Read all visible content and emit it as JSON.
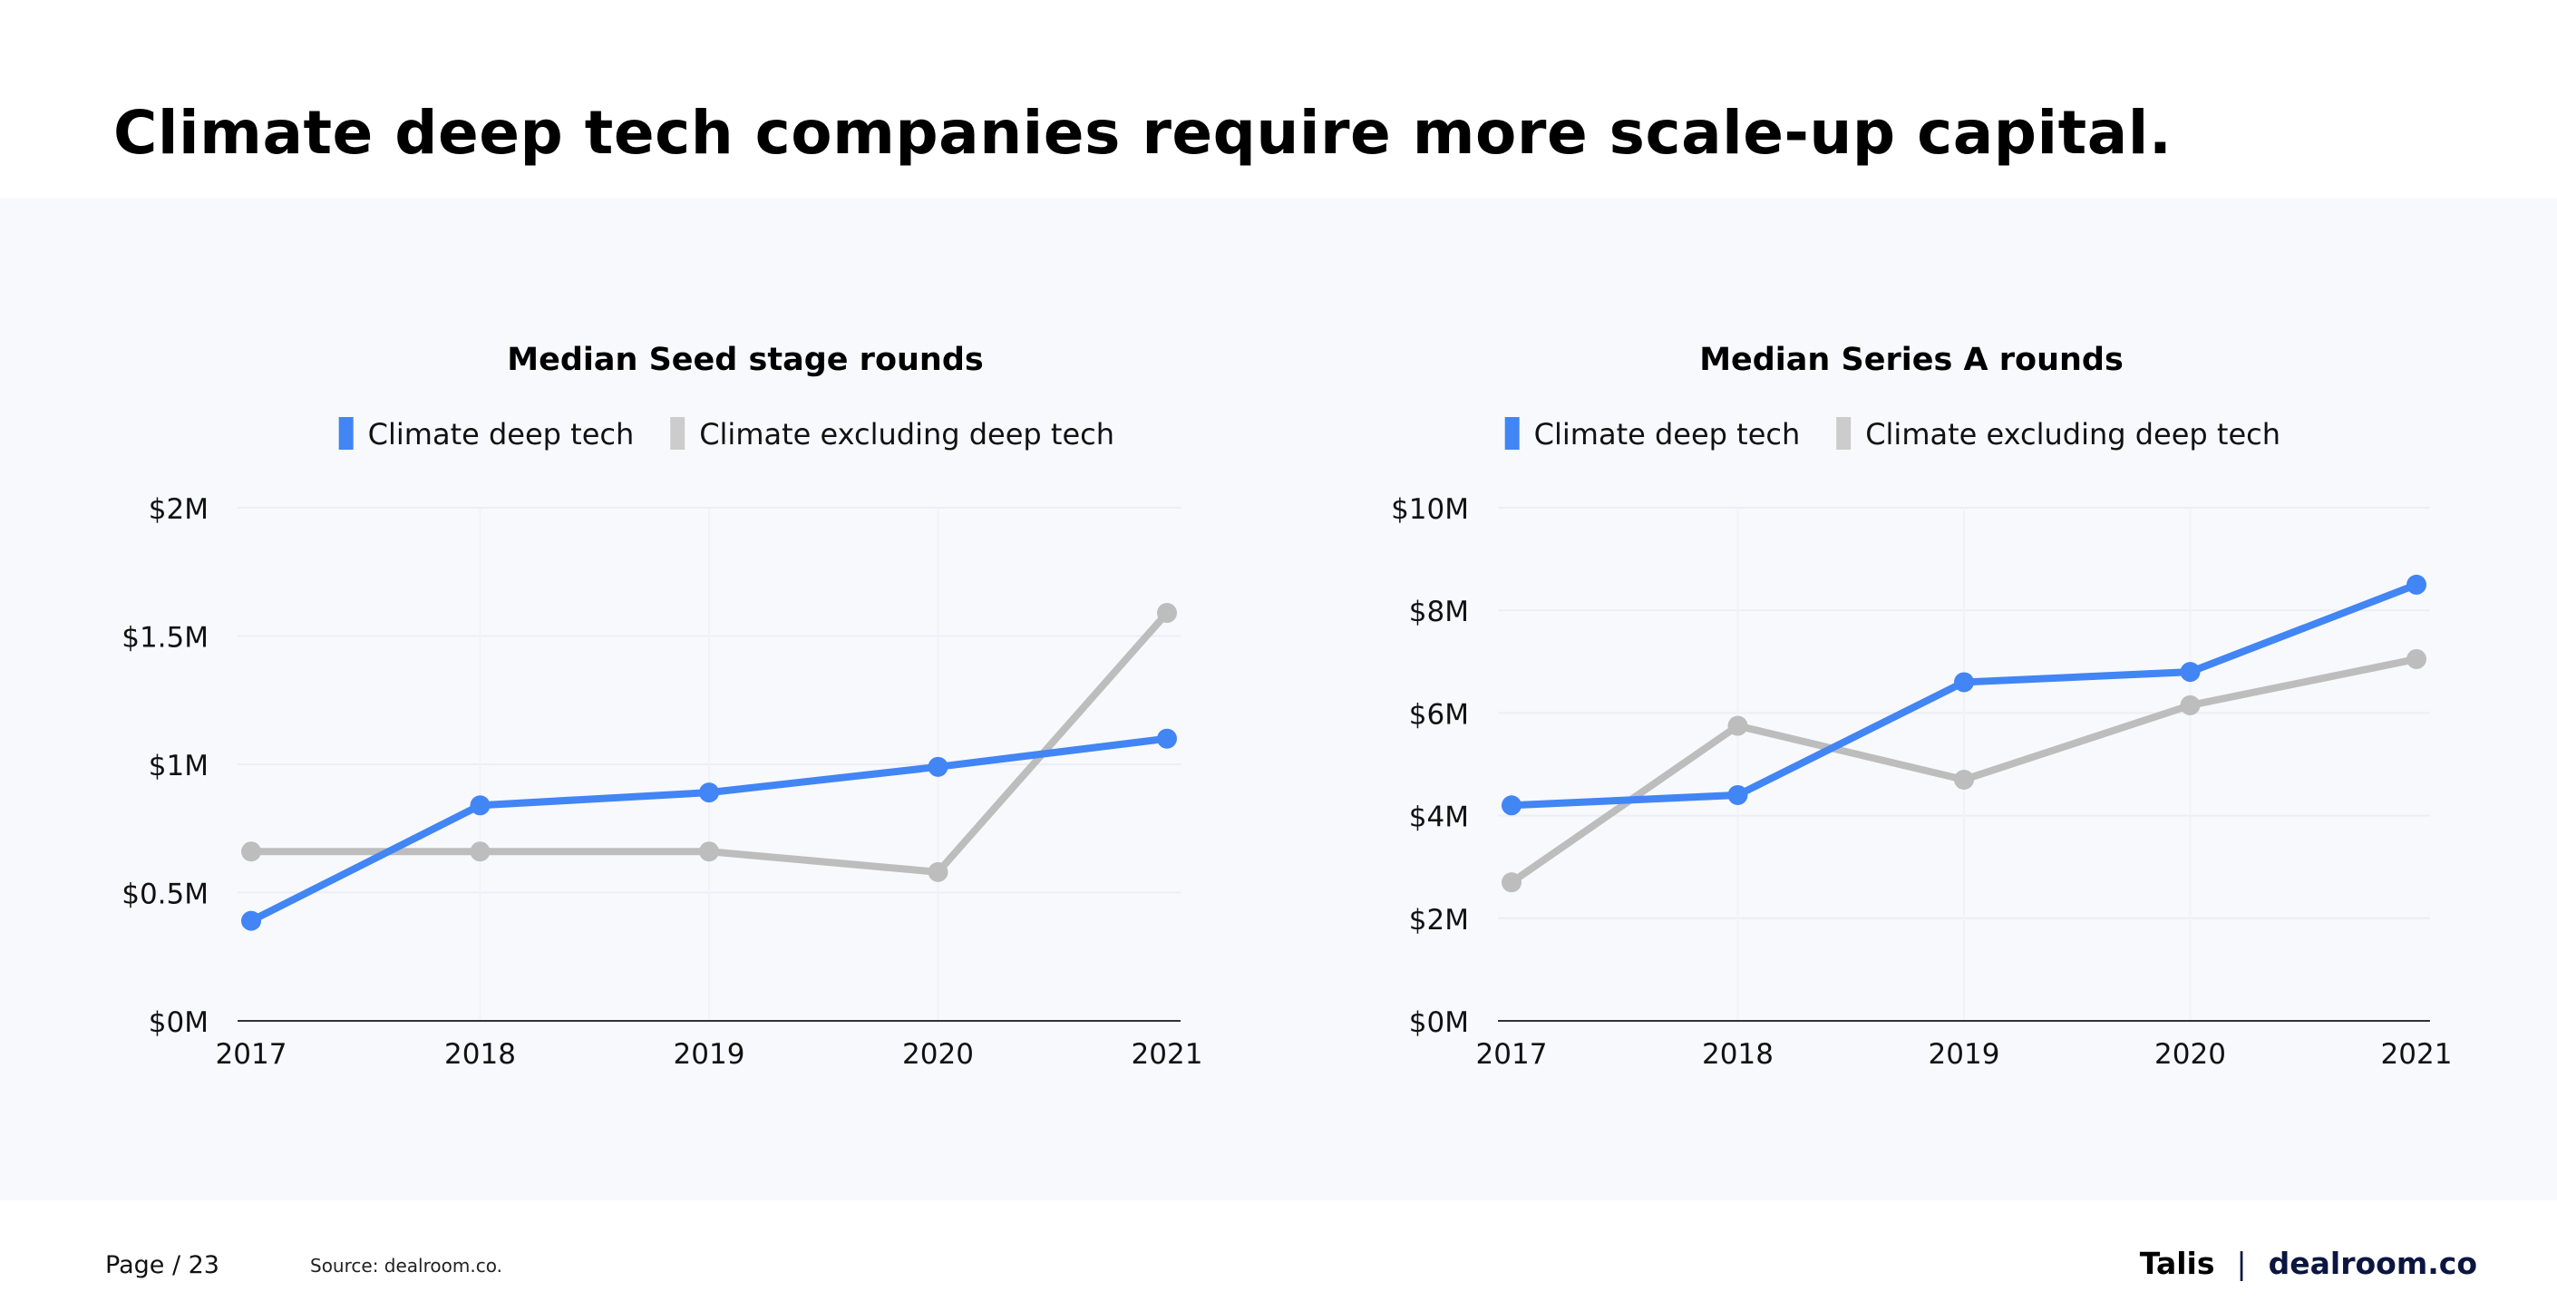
{
  "page": {
    "title": "Climate deep tech companies require more scale-up capital.",
    "footer": {
      "page_label": "Page / 23",
      "source": "Source: dealroom.co.",
      "brand_left": "Talis",
      "brand_sep": "|",
      "brand_right": "dealroom.co"
    }
  },
  "colors": {
    "deep_tech": "#4285f4",
    "excluding": "#bdbdbd",
    "panel": "#f8f9fd"
  },
  "chart_data": [
    {
      "type": "line",
      "title": "Median Seed stage rounds",
      "categories": [
        "2017",
        "2018",
        "2019",
        "2020",
        "2021"
      ],
      "ylim": [
        0,
        2
      ],
      "yticks": [
        0,
        0.5,
        1,
        1.5,
        2
      ],
      "ytick_labels": [
        "$0M",
        "$0.5M",
        "$1M",
        "$1.5M",
        "$2M"
      ],
      "y_unit": "$M",
      "grid": true,
      "legend_placement": "top-center",
      "series": [
        {
          "name": "Climate deep tech",
          "values": [
            0.39,
            0.84,
            0.89,
            0.99,
            1.1
          ]
        },
        {
          "name": "Climate excluding deep tech",
          "values": [
            0.66,
            0.66,
            0.66,
            0.58,
            1.59
          ]
        }
      ]
    },
    {
      "type": "line",
      "title": "Median Series A rounds",
      "categories": [
        "2017",
        "2018",
        "2019",
        "2020",
        "2021"
      ],
      "ylim": [
        0,
        10
      ],
      "yticks": [
        0,
        2,
        4,
        6,
        8,
        10
      ],
      "ytick_labels": [
        "$0M",
        "$2M",
        "$4M",
        "$6M",
        "$8M",
        "$10M"
      ],
      "y_unit": "$M",
      "grid": true,
      "legend_placement": "top-center",
      "series": [
        {
          "name": "Climate deep tech",
          "values": [
            4.2,
            4.4,
            6.6,
            6.8,
            8.5
          ]
        },
        {
          "name": "Climate excluding deep tech",
          "values": [
            2.7,
            5.75,
            4.7,
            6.15,
            7.05
          ]
        }
      ]
    }
  ]
}
